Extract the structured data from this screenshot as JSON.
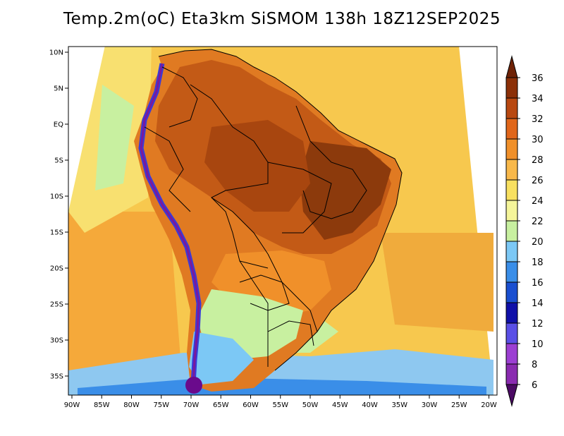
{
  "title": "Temp.2m(oC) Eta3km SiSMOM 138h 18Z12SEP2025",
  "map": {
    "lat_labels": [
      "10N",
      "5N",
      "EQ",
      "5S",
      "10S",
      "15S",
      "20S",
      "25S",
      "30S",
      "35S"
    ],
    "lat_values": [
      10,
      5,
      0,
      -5,
      -10,
      -15,
      -20,
      -25,
      -30,
      -35
    ],
    "lon_labels": [
      "90W",
      "85W",
      "80W",
      "75W",
      "70W",
      "65W",
      "60W",
      "55W",
      "50W",
      "45W",
      "40W",
      "35W",
      "30W",
      "25W",
      "20W"
    ],
    "lon_values": [
      -90,
      -85,
      -80,
      -75,
      -70,
      -65,
      -60,
      -55,
      -50,
      -45,
      -40,
      -35,
      -30,
      -25,
      -20
    ]
  },
  "colorbar": {
    "labels": [
      "6",
      "8",
      "10",
      "12",
      "14",
      "16",
      "18",
      "20",
      "22",
      "24",
      "26",
      "28",
      "30",
      "32",
      "34",
      "36"
    ],
    "colors": [
      "#6a0a8c",
      "#8a2bb0",
      "#9c3fd2",
      "#5a4fe6",
      "#1010a8",
      "#1a4fd0",
      "#3a8ee8",
      "#7cc8f5",
      "#c8f0a0",
      "#f5f59a",
      "#f8e060",
      "#f8b84a",
      "#f0902a",
      "#e0661a",
      "#b84810",
      "#8c3008"
    ],
    "under_color": "#4b0a64",
    "over_color": "#6e2206"
  },
  "colors": {
    "ocean": "#f7c84e",
    "ocean_south": "#8ec8f0",
    "land_hot": "#c85a14",
    "land_warm": "#e07a22"
  }
}
